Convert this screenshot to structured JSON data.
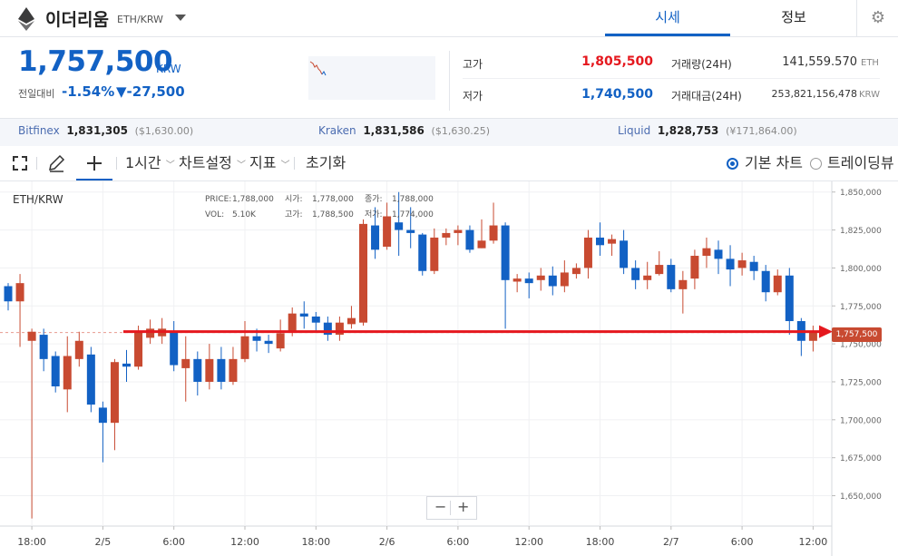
{
  "header": {
    "coin_name": "이더리움",
    "pair": "ETH/KRW",
    "tabs": [
      "시세",
      "정보"
    ]
  },
  "summary": {
    "price": "1,757,500",
    "unit": "KRW",
    "change_label": "전일대비",
    "change_pct": "-1.54%",
    "change_val": "▼-27,500",
    "high_label": "고가",
    "high": "1,805,500",
    "low_label": "저가",
    "low": "1,740,500",
    "vol_label": "거래량(24H)",
    "vol": "141,559.570",
    "vol_unit": "ETH",
    "amt_label": "거래대금(24H)",
    "amt": "253,821,156,478",
    "amt_unit": "KRW"
  },
  "exchanges": [
    {
      "name": "Bitfinex",
      "price": "1,831,305",
      "usd": "($1,630.00)"
    },
    {
      "name": "Kraken",
      "price": "1,831,586",
      "usd": "($1,630.25)"
    },
    {
      "name": "Liquid",
      "price": "1,828,753",
      "usd": "(¥171,864.00)"
    }
  ],
  "toolbar": {
    "interval": "1시간",
    "settings": "차트설정",
    "indicators": "지표",
    "reset": "초기화",
    "basic_chart": "기본 차트",
    "tradingview": "트레이딩뷰"
  },
  "colors": {
    "up": "#c84a31",
    "down": "#1261c4",
    "accent": "#1261c4",
    "price_line": "#e5181e"
  },
  "chart_data": {
    "type": "candlestick",
    "symbol": "ETH/KRW",
    "info": {
      "price_label": "PRICE:",
      "price": "1,788,000",
      "open_label": "시가:",
      "open": "1,778,000",
      "close_label": "종가:",
      "close": "1,788,000",
      "vol_label": "VOL:",
      "vol": "5.10K",
      "high_label": "고가:",
      "high": "1,788,500",
      "low_label": "저가:",
      "low": "1,774,000"
    },
    "current_price_label": "1,757,500",
    "current_price": 1757500,
    "ylim": [
      1630000,
      1857000
    ],
    "y_ticks": [
      1850000,
      1825000,
      1800000,
      1775000,
      1750000,
      1725000,
      1700000,
      1675000,
      1650000
    ],
    "y_tick_labels": [
      "1,850,000",
      "1,825,000",
      "1,800,000",
      "1,775,000",
      "1,750,000",
      "1,725,000",
      "1,700,000",
      "1,675,000",
      "1,650,000"
    ],
    "x_ticks": [
      {
        "index": 2,
        "label": "18:00"
      },
      {
        "index": 8,
        "label": "2/5"
      },
      {
        "index": 14,
        "label": "6:00"
      },
      {
        "index": 20,
        "label": "12:00"
      },
      {
        "index": 26,
        "label": "18:00"
      },
      {
        "index": 32,
        "label": "2/6"
      },
      {
        "index": 38,
        "label": "6:00"
      },
      {
        "index": 44,
        "label": "12:00"
      },
      {
        "index": 50,
        "label": "18:00"
      },
      {
        "index": 56,
        "label": "2/7"
      },
      {
        "index": 62,
        "label": "6:00"
      },
      {
        "index": 68,
        "label": "12:00"
      }
    ],
    "candles": [
      [
        1788000,
        1778000,
        1790000,
        1772000
      ],
      [
        1778000,
        1790000,
        1796000,
        1748000
      ],
      [
        1752000,
        1758000,
        1760000,
        1635000
      ],
      [
        1756000,
        1740000,
        1760000,
        1732000
      ],
      [
        1742000,
        1722000,
        1745000,
        1718000
      ],
      [
        1720000,
        1742000,
        1755000,
        1705000
      ],
      [
        1740000,
        1752000,
        1758000,
        1735000
      ],
      [
        1743000,
        1710000,
        1748000,
        1705000
      ],
      [
        1708000,
        1698000,
        1712000,
        1672000
      ],
      [
        1698000,
        1738000,
        1740000,
        1680000
      ],
      [
        1737000,
        1735000,
        1746000,
        1725000
      ],
      [
        1735000,
        1758000,
        1762000,
        1733000
      ],
      [
        1754000,
        1760000,
        1766000,
        1750000
      ],
      [
        1755000,
        1760000,
        1767000,
        1750000
      ],
      [
        1758000,
        1736000,
        1765000,
        1732000
      ],
      [
        1734000,
        1740000,
        1755000,
        1712000
      ],
      [
        1740000,
        1725000,
        1745000,
        1716000
      ],
      [
        1725000,
        1740000,
        1750000,
        1720000
      ],
      [
        1740000,
        1725000,
        1748000,
        1720000
      ],
      [
        1725000,
        1740000,
        1748000,
        1723000
      ],
      [
        1740000,
        1755000,
        1765000,
        1738000
      ],
      [
        1755000,
        1752000,
        1760000,
        1745000
      ],
      [
        1752000,
        1750000,
        1756000,
        1744000
      ],
      [
        1747000,
        1757000,
        1766000,
        1745000
      ],
      [
        1758000,
        1770000,
        1774000,
        1755000
      ],
      [
        1770000,
        1768000,
        1778000,
        1760000
      ],
      [
        1768000,
        1764000,
        1771000,
        1758000
      ],
      [
        1764000,
        1756000,
        1768000,
        1752000
      ],
      [
        1756000,
        1764000,
        1768000,
        1752000
      ],
      [
        1763000,
        1767000,
        1775000,
        1760000
      ],
      [
        1764000,
        1829000,
        1832000,
        1762000
      ],
      [
        1828000,
        1812000,
        1840000,
        1806000
      ],
      [
        1814000,
        1834000,
        1843000,
        1812000
      ],
      [
        1830000,
        1825000,
        1850000,
        1808000
      ],
      [
        1825000,
        1823000,
        1840000,
        1813000
      ],
      [
        1822000,
        1798000,
        1823000,
        1795000
      ],
      [
        1798000,
        1820000,
        1826000,
        1796000
      ],
      [
        1820000,
        1823000,
        1826000,
        1815000
      ],
      [
        1823000,
        1825000,
        1828000,
        1815000
      ],
      [
        1825000,
        1812000,
        1828000,
        1810000
      ],
      [
        1813000,
        1818000,
        1832000,
        1813000
      ],
      [
        1818000,
        1828000,
        1843000,
        1816000
      ],
      [
        1828000,
        1792000,
        1830000,
        1760000
      ],
      [
        1791000,
        1793000,
        1796000,
        1784000
      ],
      [
        1793000,
        1790000,
        1797000,
        1780000
      ],
      [
        1792000,
        1795000,
        1800000,
        1785000
      ],
      [
        1795000,
        1788000,
        1801000,
        1782000
      ],
      [
        1788000,
        1797000,
        1805000,
        1784000
      ],
      [
        1796000,
        1800000,
        1803000,
        1793000
      ],
      [
        1800000,
        1820000,
        1825000,
        1793000
      ],
      [
        1820000,
        1815000,
        1830000,
        1808000
      ],
      [
        1816000,
        1819000,
        1822000,
        1808000
      ],
      [
        1818000,
        1800000,
        1825000,
        1796000
      ],
      [
        1800000,
        1792000,
        1805000,
        1786000
      ],
      [
        1792000,
        1795000,
        1804000,
        1786000
      ],
      [
        1796000,
        1802000,
        1811000,
        1795000
      ],
      [
        1802000,
        1786000,
        1806000,
        1784000
      ],
      [
        1786000,
        1792000,
        1798000,
        1770000
      ],
      [
        1793000,
        1808000,
        1812000,
        1786000
      ],
      [
        1808000,
        1813000,
        1820000,
        1800000
      ],
      [
        1812000,
        1806000,
        1818000,
        1796000
      ],
      [
        1806000,
        1799000,
        1815000,
        1788000
      ],
      [
        1800000,
        1805000,
        1810000,
        1795000
      ],
      [
        1804000,
        1798000,
        1808000,
        1792000
      ],
      [
        1798000,
        1784000,
        1802000,
        1778000
      ],
      [
        1784000,
        1795000,
        1799000,
        1782000
      ],
      [
        1795000,
        1765000,
        1800000,
        1756000
      ],
      [
        1765000,
        1752000,
        1767000,
        1742000
      ],
      [
        1752000,
        1757500,
        1762000,
        1745000
      ]
    ]
  }
}
